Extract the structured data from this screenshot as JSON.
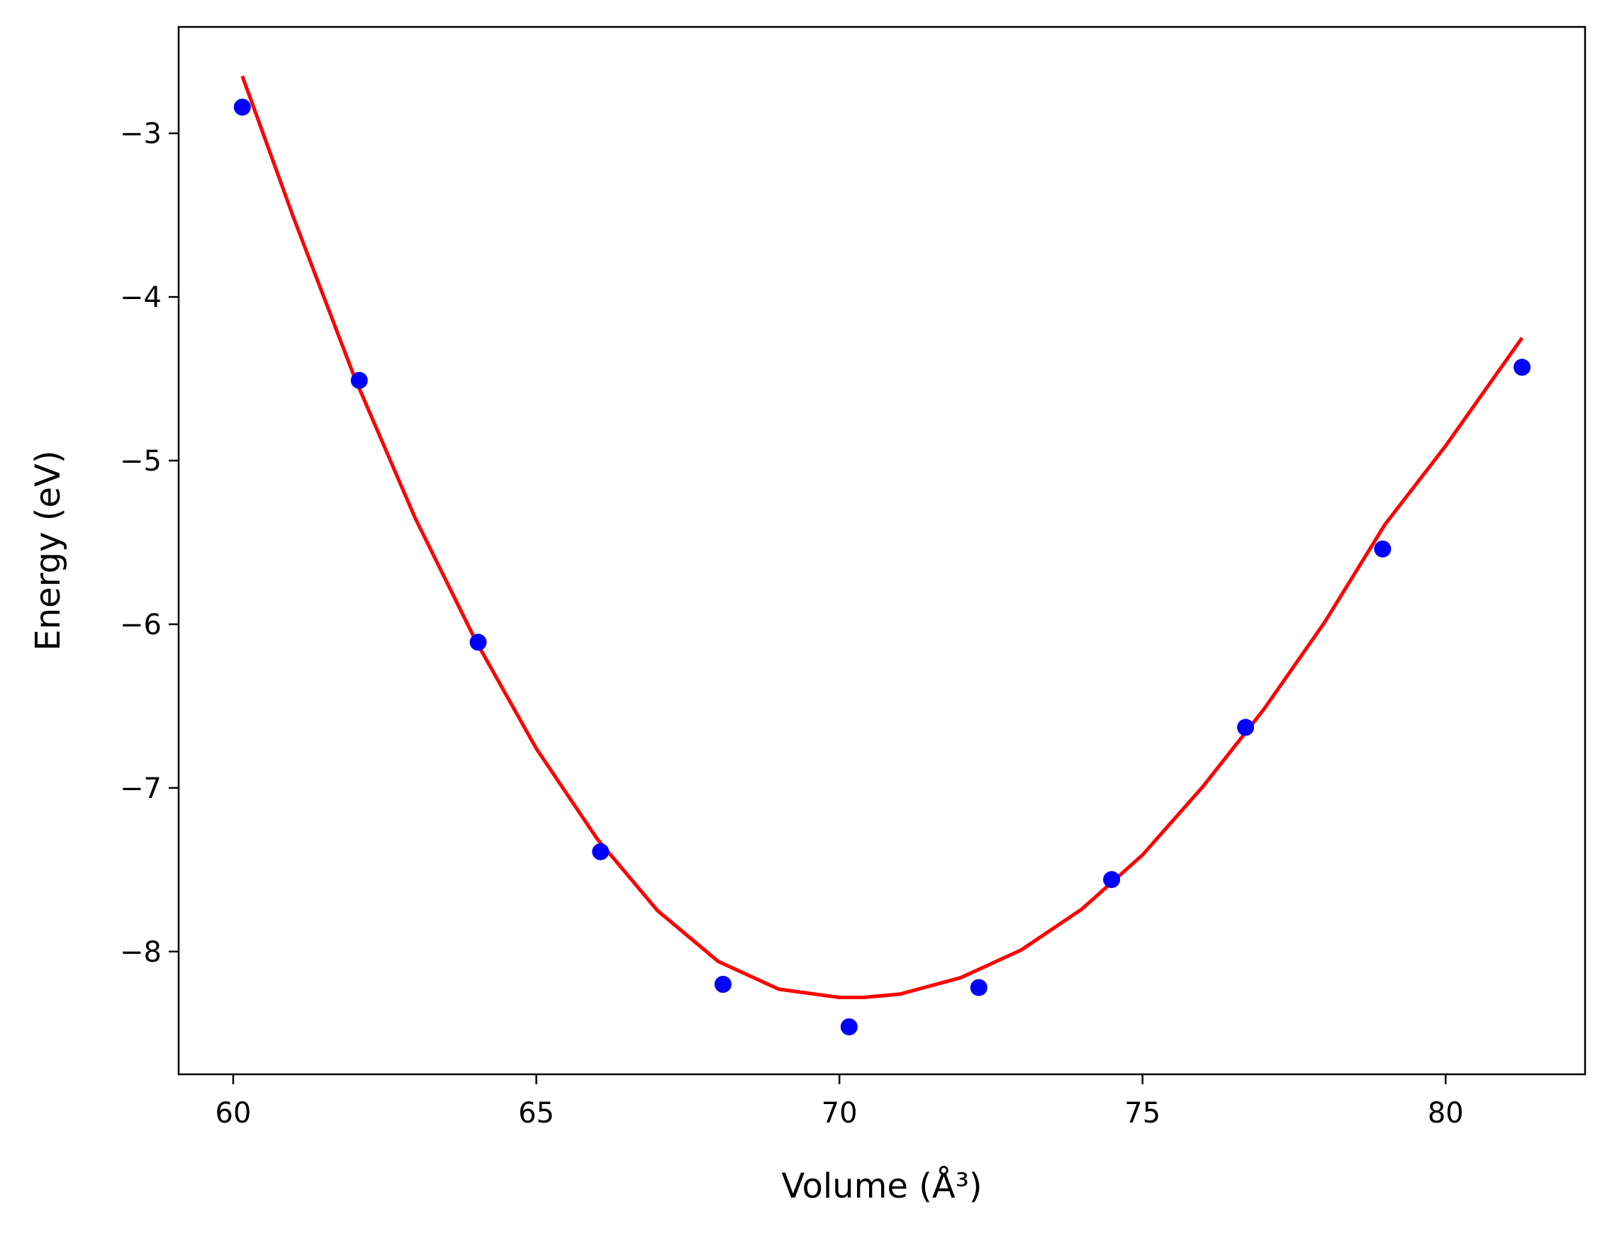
{
  "chart_data": {
    "type": "scatter",
    "xlabel": "Volume (Å³)",
    "ylabel": "Energy (eV)",
    "xlim": [
      59.1,
      82.3
    ],
    "ylim": [
      -8.75,
      -2.35
    ],
    "xticks": [
      60,
      65,
      70,
      75,
      80
    ],
    "yticks": [
      -3,
      -4,
      -5,
      -6,
      -7,
      -8
    ],
    "xtick_labels": [
      "60",
      "65",
      "70",
      "75",
      "80"
    ],
    "ytick_labels": [
      "−3",
      "−4",
      "−5",
      "−6",
      "−7",
      "−8"
    ],
    "grid": false,
    "series": [
      {
        "kind": "scatter",
        "color": "#0000ff",
        "x": [
          60.15,
          62.08,
          64.04,
          66.06,
          68.08,
          70.16,
          72.3,
          74.49,
          76.7,
          78.96,
          81.26
        ],
        "y": [
          -2.84,
          -4.51,
          -6.11,
          -7.39,
          -8.2,
          -8.46,
          -8.22,
          -7.56,
          -6.63,
          -5.54,
          -4.43
        ]
      },
      {
        "kind": "line",
        "color": "#ff0000",
        "x": [
          60.15,
          61.0,
          62.0,
          63.0,
          64.0,
          65.0,
          66.0,
          67.0,
          68.0,
          69.0,
          70.0,
          70.4,
          71.0,
          72.0,
          73.0,
          74.0,
          75.0,
          76.0,
          77.0,
          78.0,
          79.0,
          80.0,
          81.26
        ],
        "y": [
          -2.65,
          -3.52,
          -4.49,
          -5.35,
          -6.1,
          -6.76,
          -7.31,
          -7.75,
          -8.06,
          -8.23,
          -8.28,
          -8.28,
          -8.26,
          -8.16,
          -7.99,
          -7.74,
          -7.41,
          -6.99,
          -6.52,
          -5.99,
          -5.39,
          -4.91,
          -4.25
        ]
      }
    ]
  }
}
